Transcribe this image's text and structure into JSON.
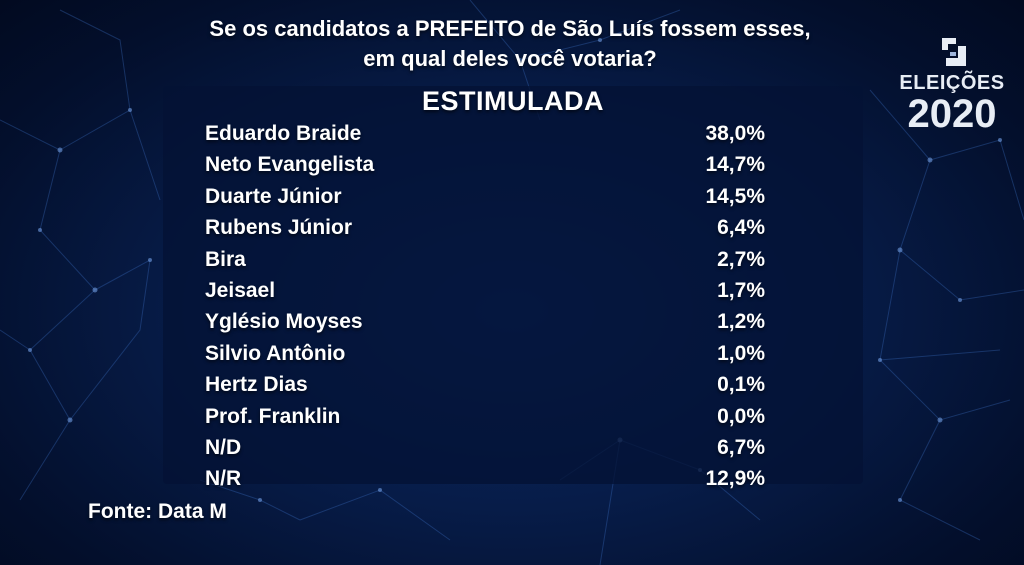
{
  "question": {
    "line1": "Se os candidatos a PREFEITO de São Luís fossem esses,",
    "line2": "em qual deles você votaria?"
  },
  "panel": {
    "title": "ESTIMULADA"
  },
  "results": [
    {
      "name": "Eduardo Braide",
      "value": "38,0%"
    },
    {
      "name": "Neto Evangelista",
      "value": "14,7%"
    },
    {
      "name": "Duarte Júnior",
      "value": "14,5%"
    },
    {
      "name": "Rubens Júnior",
      "value": "6,4%"
    },
    {
      "name": "Bira",
      "value": "2,7%"
    },
    {
      "name": "Jeisael",
      "value": "1,7%"
    },
    {
      "name": "Yglésio Moyses",
      "value": "1,2%"
    },
    {
      "name": "Silvio Antônio",
      "value": "1,0%"
    },
    {
      "name": "Hertz Dias",
      "value": "0,1%"
    },
    {
      "name": "Prof. Franklin",
      "value": "0,0%"
    },
    {
      "name": "N/D",
      "value": "6,7%"
    },
    {
      "name": "N/R",
      "value": "12,9%"
    }
  ],
  "source": "Fonte: Data M",
  "logo": {
    "line1": "ELEIÇÕES",
    "line2": "2020"
  },
  "colors": {
    "background": "#071c48",
    "panel": "#04123a",
    "text": "#ffffff",
    "network_lines": "#3d6fc4"
  }
}
